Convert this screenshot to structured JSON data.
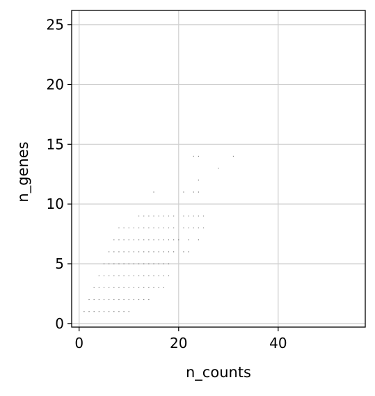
{
  "chart_data": {
    "type": "scatter",
    "title": "",
    "xlabel": "n_counts",
    "ylabel": "n_genes",
    "xlim": [
      -1.5,
      57.5
    ],
    "ylim": [
      -0.3,
      26.2
    ],
    "xticks": [
      0,
      20,
      40
    ],
    "yticks": [
      0,
      5,
      10,
      15,
      20,
      25
    ],
    "xtick_labels": [
      "0",
      "20",
      "40"
    ],
    "ytick_labels": [
      "0",
      "5",
      "10",
      "15",
      "20",
      "25"
    ],
    "grid": true,
    "legend": "none",
    "colors": {
      "points": "#777777",
      "grid": "#cfcfcf",
      "frame": "#000000"
    },
    "points": [
      [
        1,
        1
      ],
      [
        2,
        1
      ],
      [
        3,
        1
      ],
      [
        4,
        1
      ],
      [
        5,
        1
      ],
      [
        6,
        1
      ],
      [
        7,
        1
      ],
      [
        8,
        1
      ],
      [
        9,
        1
      ],
      [
        10,
        1
      ],
      [
        2,
        2
      ],
      [
        3,
        2
      ],
      [
        4,
        2
      ],
      [
        5,
        2
      ],
      [
        6,
        2
      ],
      [
        7,
        2
      ],
      [
        8,
        2
      ],
      [
        9,
        2
      ],
      [
        10,
        2
      ],
      [
        11,
        2
      ],
      [
        12,
        2
      ],
      [
        13,
        2
      ],
      [
        14,
        2
      ],
      [
        3,
        3
      ],
      [
        4,
        3
      ],
      [
        5,
        3
      ],
      [
        6,
        3
      ],
      [
        7,
        3
      ],
      [
        8,
        3
      ],
      [
        9,
        3
      ],
      [
        10,
        3
      ],
      [
        11,
        3
      ],
      [
        12,
        3
      ],
      [
        13,
        3
      ],
      [
        14,
        3
      ],
      [
        15,
        3
      ],
      [
        16,
        3
      ],
      [
        17,
        3
      ],
      [
        4,
        4
      ],
      [
        5,
        4
      ],
      [
        6,
        4
      ],
      [
        7,
        4
      ],
      [
        8,
        4
      ],
      [
        9,
        4
      ],
      [
        10,
        4
      ],
      [
        11,
        4
      ],
      [
        12,
        4
      ],
      [
        13,
        4
      ],
      [
        14,
        4
      ],
      [
        15,
        4
      ],
      [
        16,
        4
      ],
      [
        17,
        4
      ],
      [
        18,
        4
      ],
      [
        5,
        5
      ],
      [
        6,
        5
      ],
      [
        7,
        5
      ],
      [
        8,
        5
      ],
      [
        9,
        5
      ],
      [
        10,
        5
      ],
      [
        11,
        5
      ],
      [
        12,
        5
      ],
      [
        13,
        5
      ],
      [
        14,
        5
      ],
      [
        15,
        5
      ],
      [
        16,
        5
      ],
      [
        17,
        5
      ],
      [
        18,
        5
      ],
      [
        6,
        6
      ],
      [
        7,
        6
      ],
      [
        8,
        6
      ],
      [
        9,
        6
      ],
      [
        10,
        6
      ],
      [
        11,
        6
      ],
      [
        12,
        6
      ],
      [
        13,
        6
      ],
      [
        14,
        6
      ],
      [
        15,
        6
      ],
      [
        16,
        6
      ],
      [
        17,
        6
      ],
      [
        18,
        6
      ],
      [
        19,
        6
      ],
      [
        21,
        6
      ],
      [
        22,
        6
      ],
      [
        7,
        7
      ],
      [
        8,
        7
      ],
      [
        9,
        7
      ],
      [
        10,
        7
      ],
      [
        11,
        7
      ],
      [
        12,
        7
      ],
      [
        13,
        7
      ],
      [
        14,
        7
      ],
      [
        15,
        7
      ],
      [
        16,
        7
      ],
      [
        17,
        7
      ],
      [
        18,
        7
      ],
      [
        19,
        7
      ],
      [
        20,
        7
      ],
      [
        22,
        7
      ],
      [
        24,
        7
      ],
      [
        8,
        8
      ],
      [
        9,
        8
      ],
      [
        10,
        8
      ],
      [
        11,
        8
      ],
      [
        12,
        8
      ],
      [
        13,
        8
      ],
      [
        14,
        8
      ],
      [
        15,
        8
      ],
      [
        16,
        8
      ],
      [
        17,
        8
      ],
      [
        18,
        8
      ],
      [
        19,
        8
      ],
      [
        21,
        8
      ],
      [
        22,
        8
      ],
      [
        23,
        8
      ],
      [
        24,
        8
      ],
      [
        25,
        8
      ],
      [
        12,
        9
      ],
      [
        13,
        9
      ],
      [
        14,
        9
      ],
      [
        15,
        9
      ],
      [
        16,
        9
      ],
      [
        17,
        9
      ],
      [
        18,
        9
      ],
      [
        19,
        9
      ],
      [
        21,
        9
      ],
      [
        22,
        9
      ],
      [
        23,
        9
      ],
      [
        24,
        9
      ],
      [
        25,
        9
      ],
      [
        15,
        11
      ],
      [
        21,
        11
      ],
      [
        23,
        11
      ],
      [
        24,
        11
      ],
      [
        24,
        12
      ],
      [
        28,
        13
      ],
      [
        23,
        14
      ],
      [
        24,
        14
      ],
      [
        31,
        14
      ]
    ]
  }
}
